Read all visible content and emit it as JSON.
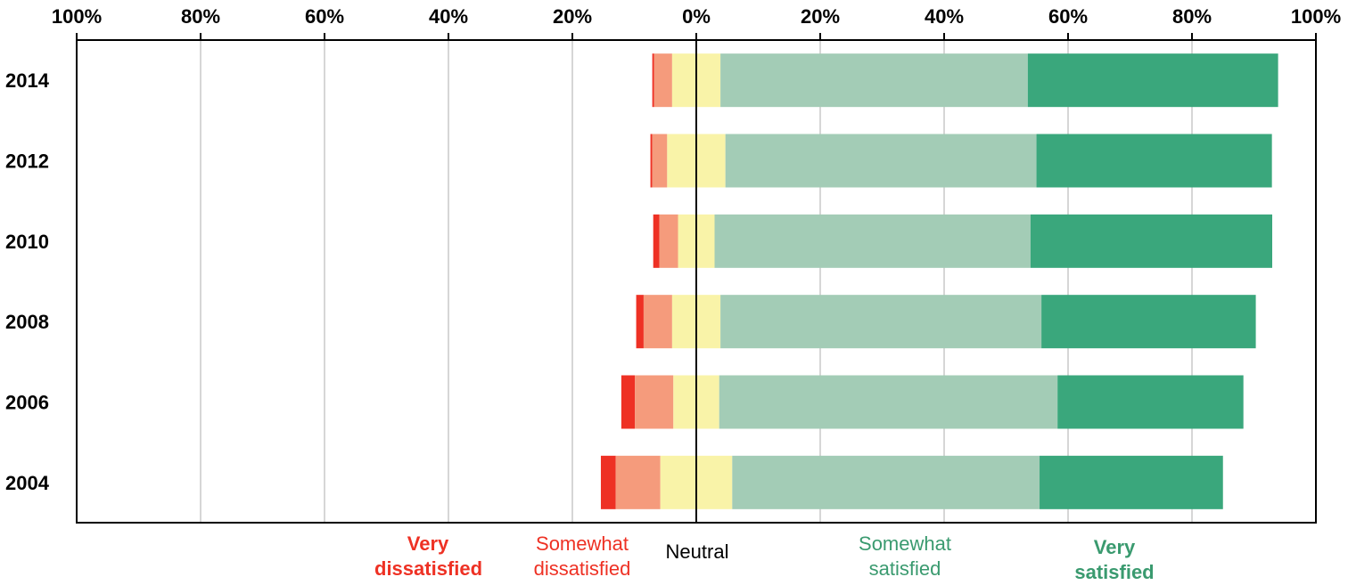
{
  "chart_data": {
    "type": "bar",
    "orientation": "horizontal",
    "stacking": "diverging",
    "categories": [
      "2014",
      "2012",
      "2010",
      "2008",
      "2006",
      "2004"
    ],
    "x_tick_labels": [
      "100%",
      "80%",
      "60%",
      "40%",
      "20%",
      "0%",
      "20%",
      "40%",
      "60%",
      "80%",
      "100%"
    ],
    "xlim": [
      -100,
      100
    ],
    "grid": true,
    "neutral_split": "centered",
    "series": [
      {
        "name_line1": "Very",
        "name_line2": "dissatisfied",
        "color": "#ee3124",
        "values": [
          0.3,
          0.3,
          1.0,
          1.2,
          2.2,
          2.4
        ]
      },
      {
        "name_line1": "Somewhat",
        "name_line2": "dissatisfied",
        "color": "#f59b7c",
        "values": [
          2.9,
          2.4,
          3.0,
          4.6,
          6.2,
          7.2
        ]
      },
      {
        "name_line1": "Neutral",
        "name_line2": "",
        "color": "#f9f3a8",
        "values": [
          7.8,
          9.4,
          5.9,
          7.8,
          7.4,
          11.6
        ]
      },
      {
        "name_line1": "Somewhat",
        "name_line2": "satisfied",
        "color": "#a3ccb6",
        "values": [
          49.6,
          50.2,
          51.0,
          51.8,
          54.6,
          49.6
        ]
      },
      {
        "name_line1": "Very",
        "name_line2": "satisfied",
        "color": "#3aa77c",
        "values": [
          40.4,
          38.0,
          39.0,
          34.6,
          30.0,
          29.6
        ]
      }
    ],
    "legend_placement": "bottom"
  }
}
